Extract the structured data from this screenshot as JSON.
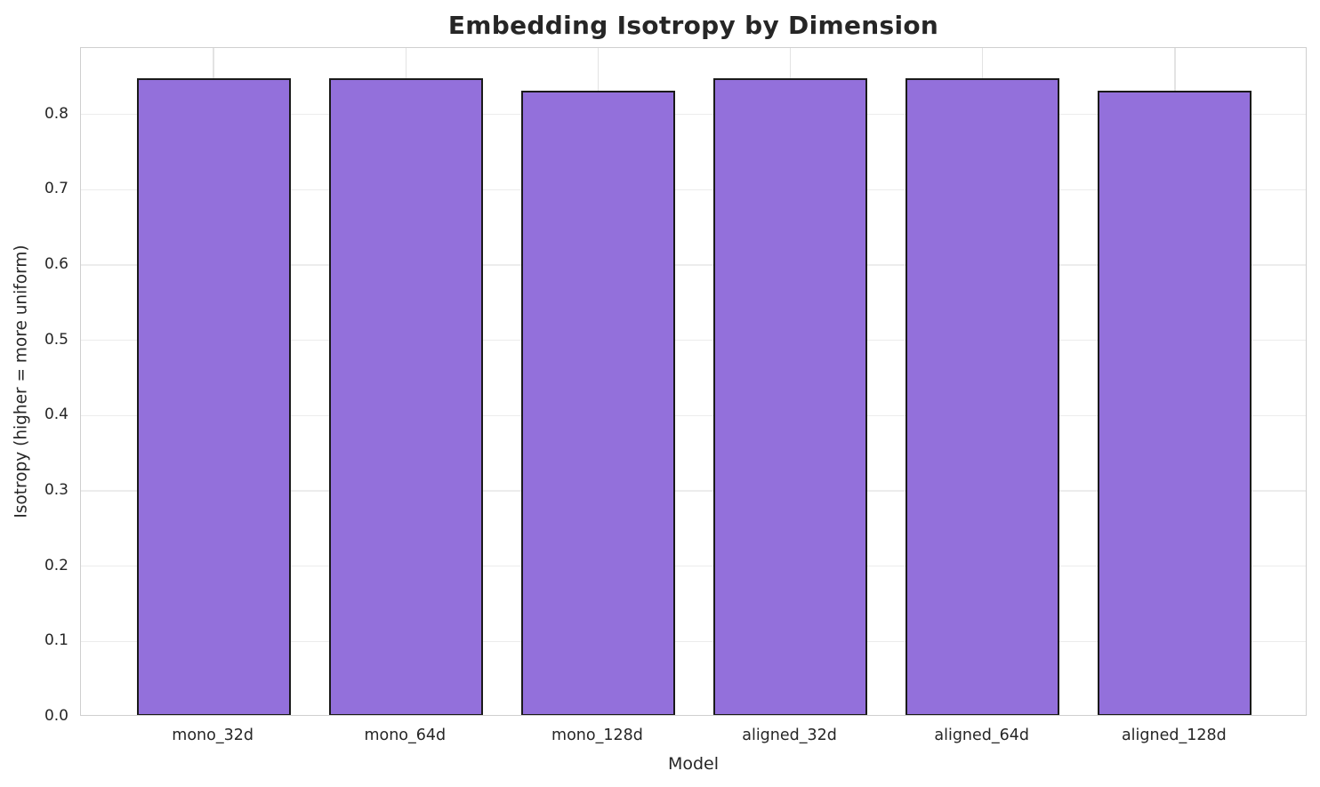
{
  "figure": {
    "title": "Embedding Isotropy by Dimension"
  },
  "chart_data": {
    "type": "bar",
    "title": "Embedding Isotropy by Dimension",
    "xlabel": "Model",
    "ylabel": "Isotropy (higher = more uniform)",
    "categories": [
      "mono_32d",
      "mono_64d",
      "mono_128d",
      "aligned_32d",
      "aligned_64d",
      "aligned_128d"
    ],
    "values": [
      0.846,
      0.846,
      0.829,
      0.846,
      0.846,
      0.829
    ],
    "ylim": [
      0,
      0.888
    ],
    "xlim": [
      -0.69,
      5.69
    ],
    "bar_width_data_units": 0.8,
    "yticks": [
      0.0,
      0.1,
      0.2,
      0.3,
      0.4,
      0.5,
      0.6,
      0.7,
      0.8
    ],
    "ytick_labels": [
      "0.0",
      "0.1",
      "0.2",
      "0.3",
      "0.4",
      "0.5",
      "0.6",
      "0.7",
      "0.8"
    ],
    "grid": true,
    "legend_position": "none",
    "colors": {
      "bar_fill": "#9370DB",
      "bar_edge": "#1a1a1a",
      "grid_h": "#ececec",
      "grid_v": "#d9d9d9",
      "spine": "#cfcfcf",
      "text": "#262626"
    }
  }
}
